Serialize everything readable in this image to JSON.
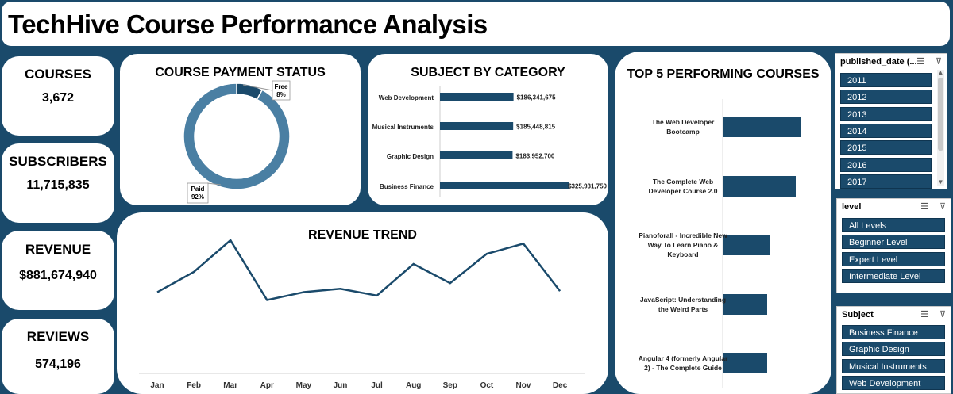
{
  "header": {
    "title": "TechHive Course Performance Analysis"
  },
  "kpis": {
    "courses": {
      "label": "COURSES",
      "value": "3,672"
    },
    "subscribers": {
      "label": "SUBSCRIBERS",
      "value": "11,715,835"
    },
    "revenue": {
      "label": "REVENUE",
      "value": "$881,674,940"
    },
    "reviews": {
      "label": "REVIEWS",
      "value": "574,196"
    }
  },
  "payment_status": {
    "title": "COURSE PAYMENT STATUS",
    "free_label": "Free",
    "free_pct": "8%",
    "paid_label": "Paid",
    "paid_pct": "92%"
  },
  "subject_panel": {
    "title": "SUBJECT BY CATEGORY"
  },
  "revenue_panel": {
    "title": "REVENUE TREND"
  },
  "top5_panel": {
    "title": "TOP 5 PERFORMING COURSES"
  },
  "slicers": {
    "published_date": {
      "title": "published_date (...",
      "items": [
        "2011",
        "2012",
        "2013",
        "2014",
        "2015",
        "2016",
        "2017"
      ]
    },
    "level": {
      "title": "level",
      "items": [
        "All Levels",
        "Beginner Level",
        "Expert Level",
        "Intermediate Level"
      ]
    },
    "subject": {
      "title": "Subject",
      "items": [
        "Business Finance",
        "Graphic Design",
        "Musical Instruments",
        "Web Development"
      ]
    }
  },
  "colors": {
    "background": "#1a4a6b",
    "bar": "#1a4a6b",
    "paid": "#4a7fa3",
    "free": "#1a4a6b",
    "line": "#1a4a6b"
  },
  "icons": {
    "multi_select": "multi-select-icon",
    "clear_filter": "clear-filter-icon"
  },
  "chart_data": [
    {
      "type": "pie",
      "title": "COURSE PAYMENT STATUS",
      "categories": [
        "Free",
        "Paid"
      ],
      "values": [
        8,
        92
      ],
      "labels": [
        "8%",
        "92%"
      ]
    },
    {
      "type": "bar",
      "orientation": "horizontal",
      "title": "SUBJECT BY CATEGORY",
      "categories": [
        "Web Development",
        "Musical Instruments",
        "Graphic Design",
        "Business Finance"
      ],
      "values": [
        186341675,
        185448815,
        183952700,
        325931750
      ],
      "labels": [
        "$186,341,675",
        "$185,448,815",
        "$183,952,700",
        "$325,931,750"
      ],
      "xlim": [
        0,
        325931750
      ]
    },
    {
      "type": "line",
      "title": "REVENUE TREND",
      "categories": [
        "Jan",
        "Feb",
        "Mar",
        "Apr",
        "May",
        "Jun",
        "Jul",
        "Aug",
        "Sep",
        "Oct",
        "Nov",
        "Dec"
      ],
      "values": [
        72,
        90,
        118,
        65,
        72,
        75,
        69,
        97,
        80,
        106,
        115,
        73
      ],
      "ylim": [
        0,
        130
      ],
      "grid": false
    },
    {
      "type": "bar",
      "orientation": "horizontal",
      "title": "TOP 5 PERFORMING COURSES",
      "categories": [
        [
          "The Web Developer",
          "Bootcamp"
        ],
        [
          "The Complete Web",
          "Developer Course 2.0"
        ],
        [
          "Pianoforall - Incredible New",
          "Way To Learn Piano &",
          "Keyboard"
        ],
        [
          "JavaScript: Understanding",
          "the Weird Parts"
        ],
        [
          "Angular 4 (formerly Angular",
          "2) - The Complete Guide"
        ]
      ],
      "values": [
        98,
        92,
        60,
        56,
        56
      ],
      "xlim": [
        0,
        100
      ]
    }
  ]
}
